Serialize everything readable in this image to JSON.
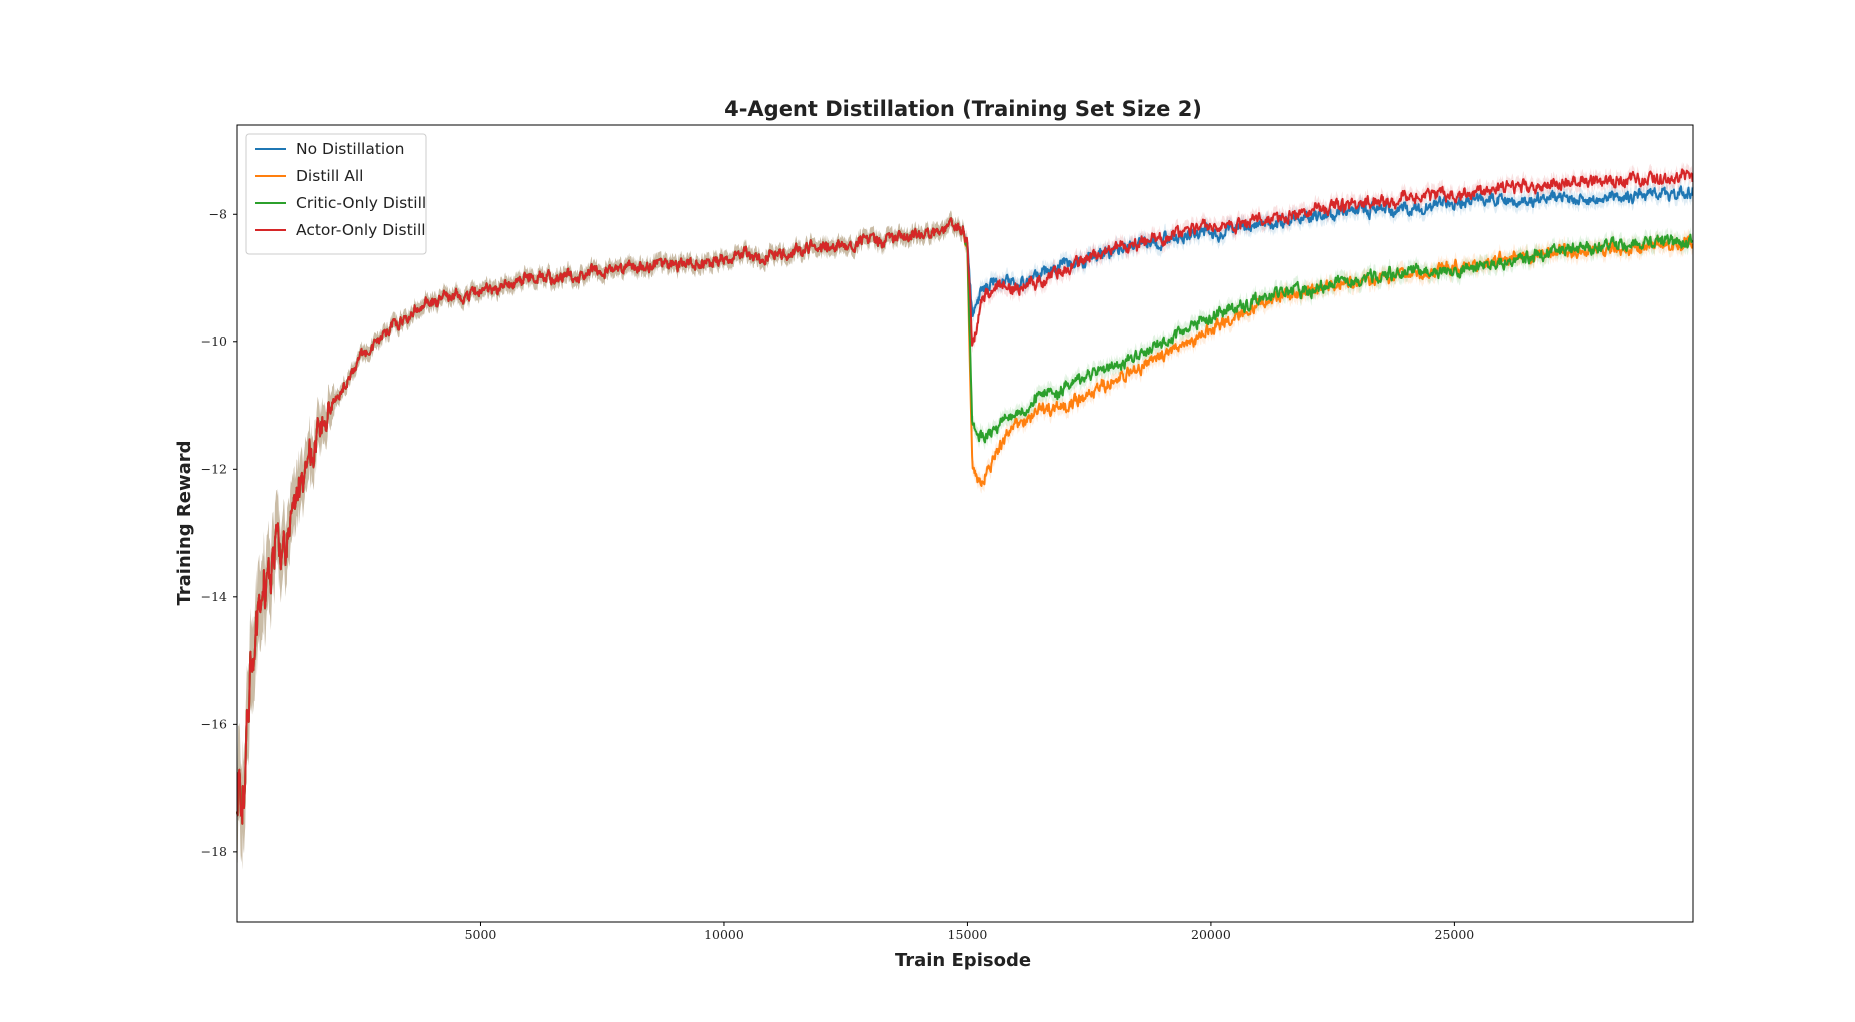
{
  "chart_data": {
    "type": "line",
    "title": "4-Agent Distillation (Training Set Size 2)",
    "xlabel": "Train Episode",
    "ylabel": "Training Reward",
    "xlim": [
      0,
      29900
    ],
    "ylim": [
      -19.1,
      -6.6
    ],
    "x_ticks": [
      5000,
      10000,
      15000,
      20000,
      25000
    ],
    "x_tick_labels": [
      "5000",
      "10000",
      "15000",
      "20000",
      "25000"
    ],
    "y_ticks": [
      -18,
      -16,
      -14,
      -12,
      -10,
      -8
    ],
    "y_tick_labels": [
      "−18",
      "−16",
      "−14",
      "−12",
      "−10",
      "−8"
    ],
    "grid": false,
    "legend_position": "top-left",
    "series": [
      {
        "name": "No Distillation",
        "color": "#1f77b4",
        "x": [
          0,
          150,
          300,
          500,
          800,
          1000,
          1500,
          2000,
          2500,
          3000,
          3500,
          4000,
          5000,
          6000,
          7000,
          8000,
          9000,
          10000,
          11000,
          12000,
          13000,
          14000,
          14900,
          15000,
          15100,
          15300,
          15600,
          16000,
          16500,
          17000,
          18000,
          19000,
          20000,
          21000,
          22000,
          23000,
          24000,
          25000,
          26000,
          27000,
          28000,
          29000,
          29900
        ],
        "y": [
          -17.0,
          -17.2,
          -15.0,
          -14.0,
          -13.2,
          -13.0,
          -11.8,
          -10.9,
          -10.3,
          -9.9,
          -9.6,
          -9.4,
          -9.2,
          -9.0,
          -8.95,
          -8.85,
          -8.8,
          -8.7,
          -8.65,
          -8.55,
          -8.45,
          -8.3,
          -8.2,
          -8.5,
          -9.6,
          -9.2,
          -9.0,
          -9.1,
          -8.95,
          -8.8,
          -8.55,
          -8.4,
          -8.3,
          -8.2,
          -8.05,
          -7.95,
          -7.9,
          -7.85,
          -7.8,
          -7.75,
          -7.75,
          -7.7,
          -7.65
        ]
      },
      {
        "name": "Distill All",
        "color": "#ff7f0e",
        "x": [
          0,
          150,
          300,
          500,
          800,
          1000,
          1500,
          2000,
          2500,
          3000,
          3500,
          4000,
          5000,
          6000,
          7000,
          8000,
          9000,
          10000,
          11000,
          12000,
          13000,
          14000,
          14900,
          15000,
          15100,
          15300,
          15600,
          16000,
          16500,
          17000,
          18000,
          19000,
          20000,
          21000,
          22000,
          23000,
          24000,
          25000,
          26000,
          27000,
          28000,
          29000,
          29900
        ],
        "y": [
          -17.0,
          -17.2,
          -15.0,
          -14.0,
          -13.2,
          -13.0,
          -11.8,
          -10.9,
          -10.3,
          -9.9,
          -9.6,
          -9.4,
          -9.2,
          -9.0,
          -8.95,
          -8.85,
          -8.8,
          -8.7,
          -8.65,
          -8.55,
          -8.45,
          -8.3,
          -8.2,
          -8.6,
          -12.0,
          -12.2,
          -11.7,
          -11.3,
          -11.1,
          -11.0,
          -10.6,
          -10.2,
          -9.8,
          -9.4,
          -9.2,
          -9.05,
          -8.95,
          -8.85,
          -8.7,
          -8.6,
          -8.55,
          -8.5,
          -8.45
        ]
      },
      {
        "name": "Critic-Only Distill",
        "color": "#2ca02c",
        "x": [
          0,
          150,
          300,
          500,
          800,
          1000,
          1500,
          2000,
          2500,
          3000,
          3500,
          4000,
          5000,
          6000,
          7000,
          8000,
          9000,
          10000,
          11000,
          12000,
          13000,
          14000,
          14900,
          15000,
          15100,
          15300,
          15600,
          16000,
          16500,
          17000,
          18000,
          19000,
          20000,
          21000,
          22000,
          23000,
          24000,
          25000,
          26000,
          27000,
          28000,
          29000,
          29900
        ],
        "y": [
          -17.0,
          -17.2,
          -15.0,
          -14.0,
          -13.2,
          -13.0,
          -11.8,
          -10.9,
          -10.3,
          -9.9,
          -9.6,
          -9.4,
          -9.2,
          -9.0,
          -8.95,
          -8.85,
          -8.8,
          -8.7,
          -8.65,
          -8.55,
          -8.45,
          -8.3,
          -8.2,
          -8.5,
          -11.3,
          -11.5,
          -11.3,
          -11.1,
          -10.9,
          -10.7,
          -10.4,
          -10.0,
          -9.6,
          -9.3,
          -9.15,
          -9.05,
          -8.95,
          -8.85,
          -8.75,
          -8.6,
          -8.5,
          -8.45,
          -8.4
        ]
      },
      {
        "name": "Actor-Only Distill",
        "color": "#d62728",
        "x": [
          0,
          150,
          300,
          500,
          800,
          1000,
          1500,
          2000,
          2500,
          3000,
          3500,
          4000,
          5000,
          6000,
          7000,
          8000,
          9000,
          10000,
          11000,
          12000,
          13000,
          14000,
          14900,
          15000,
          15100,
          15300,
          15600,
          16000,
          16500,
          17000,
          18000,
          19000,
          20000,
          21000,
          22000,
          23000,
          24000,
          25000,
          26000,
          27000,
          28000,
          29000,
          29900
        ],
        "y": [
          -17.0,
          -17.2,
          -15.0,
          -14.0,
          -13.2,
          -13.0,
          -11.8,
          -10.9,
          -10.3,
          -9.9,
          -9.6,
          -9.4,
          -9.2,
          -9.0,
          -8.95,
          -8.85,
          -8.8,
          -8.7,
          -8.65,
          -8.55,
          -8.45,
          -8.3,
          -8.2,
          -8.5,
          -10.1,
          -9.3,
          -9.1,
          -9.15,
          -9.05,
          -8.85,
          -8.55,
          -8.35,
          -8.2,
          -8.1,
          -7.95,
          -7.85,
          -7.75,
          -7.7,
          -7.6,
          -7.55,
          -7.5,
          -7.45,
          -7.45
        ]
      }
    ]
  }
}
